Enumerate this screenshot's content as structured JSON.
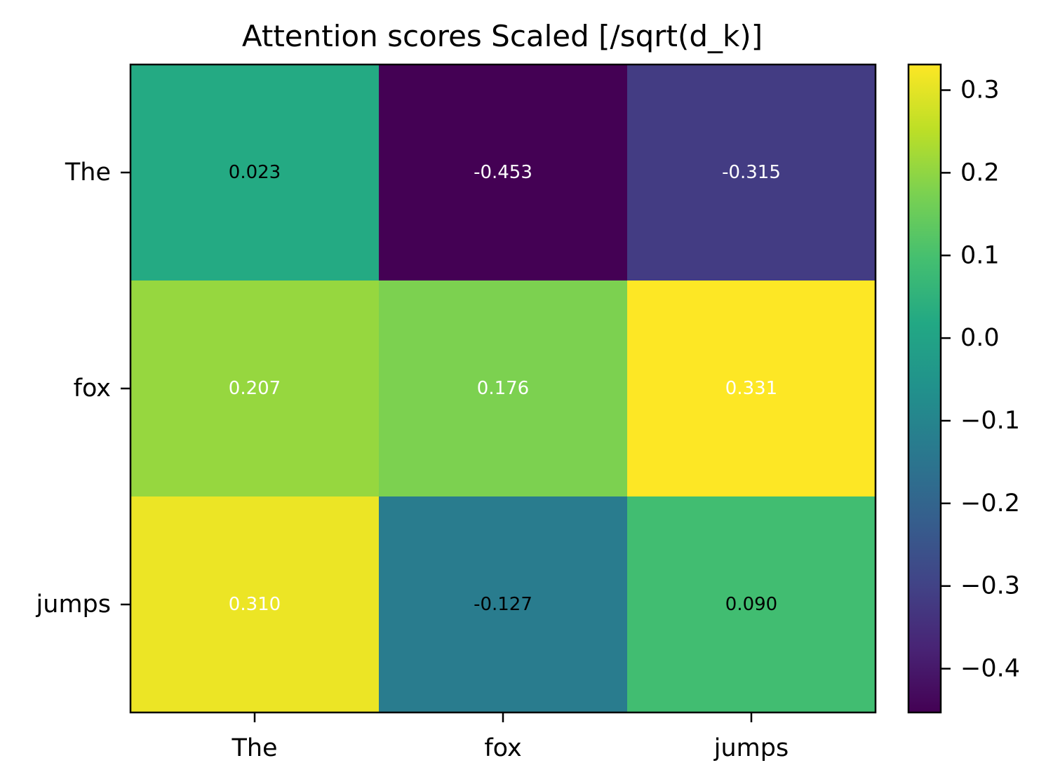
{
  "chart_data": {
    "type": "heatmap",
    "title": "Attention scores Scaled [/sqrt(d_k)]",
    "xlabel": "",
    "ylabel": "",
    "x_categories": [
      "The",
      "fox",
      "jumps"
    ],
    "y_categories": [
      "The",
      "fox",
      "jumps"
    ],
    "values": [
      [
        0.023,
        -0.453,
        -0.315
      ],
      [
        0.207,
        0.176,
        0.331
      ],
      [
        0.31,
        -0.127,
        0.09
      ]
    ],
    "cell_labels": [
      [
        "0.023",
        "-0.453",
        "-0.315"
      ],
      [
        "0.207",
        "0.176",
        "0.331"
      ],
      [
        "0.310",
        "-0.127",
        "0.090"
      ]
    ],
    "cell_label_colors": [
      [
        "#000000",
        "#ffffff",
        "#ffffff"
      ],
      [
        "#ffffff",
        "#ffffff",
        "#ffffff"
      ],
      [
        "#ffffff",
        "#000000",
        "#000000"
      ]
    ],
    "colormap": "viridis",
    "colorbar": {
      "range": [
        -0.453,
        0.331
      ],
      "ticks": [
        0.3,
        0.2,
        0.1,
        0.0,
        -0.1,
        -0.2,
        -0.3,
        -0.4
      ],
      "tick_labels": [
        "0.3",
        "0.2",
        "0.1",
        "0.0",
        "−0.1",
        "−0.2",
        "−0.3",
        "−0.4"
      ],
      "placement": "right"
    },
    "grid": false
  }
}
